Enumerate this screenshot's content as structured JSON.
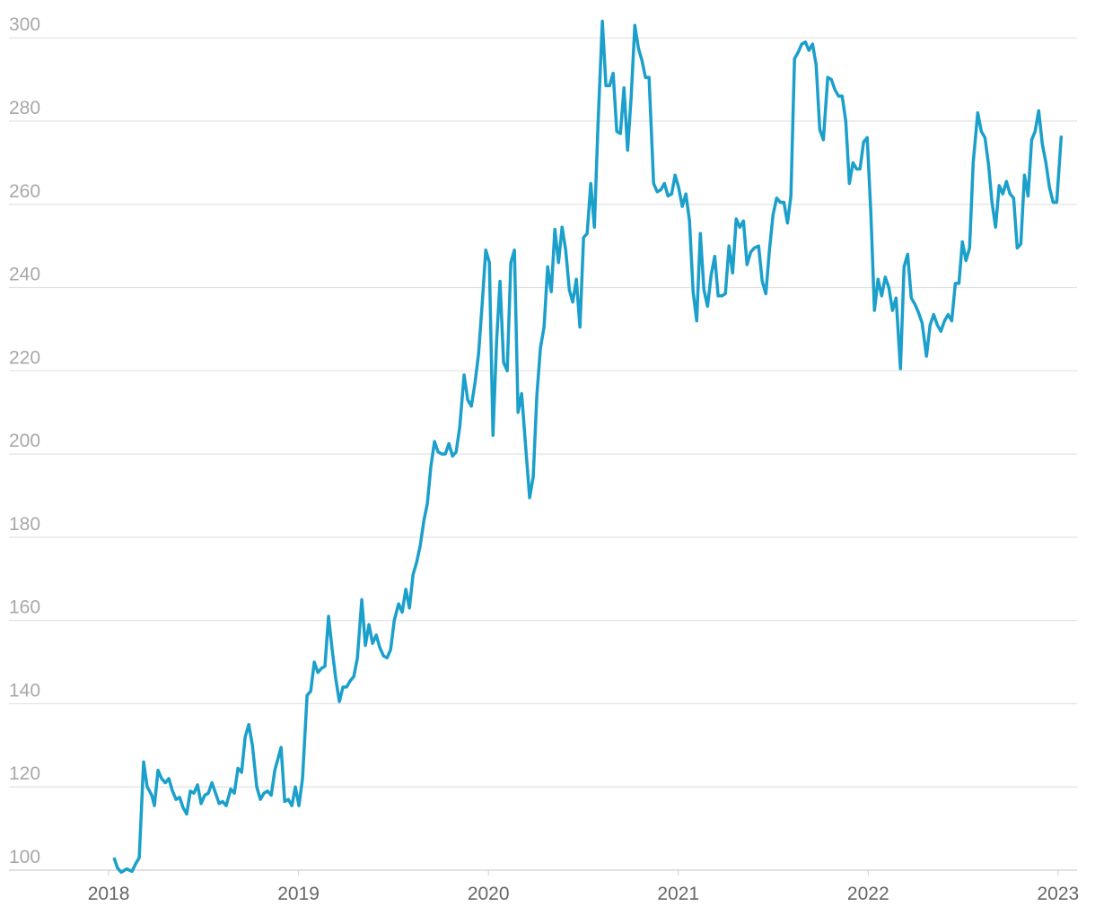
{
  "chart_data": {
    "type": "line",
    "x": [
      2018.028,
      2018.047,
      2018.066,
      2018.095,
      2018.123,
      2018.142,
      2018.161,
      2018.184,
      2018.203,
      2018.227,
      2018.241,
      2018.26,
      2018.279,
      2018.298,
      2018.317,
      2018.336,
      2018.355,
      2018.374,
      2018.392,
      2018.411,
      2018.43,
      2018.449,
      2018.468,
      2018.487,
      2018.506,
      2018.525,
      2018.544,
      2018.563,
      2018.582,
      2018.6,
      2018.619,
      2018.643,
      2018.662,
      2018.681,
      2018.7,
      2018.719,
      2018.738,
      2018.757,
      2018.78,
      2018.799,
      2018.818,
      2018.837,
      2018.856,
      2018.875,
      2018.908,
      2018.927,
      2018.946,
      2018.965,
      2018.983,
      2019.002,
      2019.021,
      2019.045,
      2019.064,
      2019.083,
      2019.102,
      2019.121,
      2019.139,
      2019.158,
      2019.177,
      2019.196,
      2019.215,
      2019.234,
      2019.253,
      2019.272,
      2019.291,
      2019.31,
      2019.333,
      2019.352,
      2019.371,
      2019.39,
      2019.409,
      2019.428,
      2019.447,
      2019.466,
      2019.485,
      2019.504,
      2019.527,
      2019.546,
      2019.565,
      2019.584,
      2019.603,
      2019.622,
      2019.641,
      2019.66,
      2019.678,
      2019.697,
      2019.716,
      2019.735,
      2019.754,
      2019.773,
      2019.792,
      2019.811,
      2019.83,
      2019.849,
      2019.872,
      2019.891,
      2019.91,
      2019.929,
      2019.948,
      2019.967,
      2019.986,
      2020.005,
      2020.024,
      2020.043,
      2020.061,
      2020.08,
      2020.099,
      2020.118,
      2020.137,
      2020.156,
      2020.175,
      2020.194,
      2020.217,
      2020.236,
      2020.255,
      2020.274,
      2020.293,
      2020.312,
      2020.331,
      2020.35,
      2020.369,
      2020.388,
      2020.407,
      2020.426,
      2020.444,
      2020.463,
      2020.482,
      2020.501,
      2020.52,
      2020.539,
      2020.558,
      2020.577,
      2020.6,
      2020.619,
      2020.638,
      2020.657,
      2020.676,
      2020.695,
      2020.714,
      2020.733,
      2020.752,
      2020.771,
      2020.79,
      2020.809,
      2020.827,
      2020.846,
      2020.87,
      2020.889,
      2020.908,
      2020.927,
      2020.946,
      2020.965,
      2020.983,
      2021.002,
      2021.021,
      2021.04,
      2021.059,
      2021.078,
      2021.097,
      2021.116,
      2021.135,
      2021.154,
      2021.173,
      2021.192,
      2021.21,
      2021.229,
      2021.248,
      2021.267,
      2021.286,
      2021.305,
      2021.324,
      2021.343,
      2021.362,
      2021.381,
      2021.4,
      2021.423,
      2021.442,
      2021.461,
      2021.48,
      2021.499,
      2021.518,
      2021.537,
      2021.556,
      2021.575,
      2021.593,
      2021.612,
      2021.631,
      2021.65,
      2021.669,
      2021.688,
      2021.707,
      2021.726,
      2021.745,
      2021.764,
      2021.787,
      2021.806,
      2021.825,
      2021.844,
      2021.863,
      2021.882,
      2021.901,
      2021.92,
      2021.939,
      2021.957,
      2021.976,
      2021.995,
      2022.014,
      2022.033,
      2022.052,
      2022.071,
      2022.09,
      2022.109,
      2022.128,
      2022.147,
      2022.17,
      2022.189,
      2022.208,
      2022.227,
      2022.246,
      2022.265,
      2022.284,
      2022.307,
      2022.326,
      2022.345,
      2022.364,
      2022.383,
      2022.402,
      2022.421,
      2022.44,
      2022.459,
      2022.478,
      2022.496,
      2022.515,
      2022.534,
      2022.553,
      2022.577,
      2022.596,
      2022.615,
      2022.634,
      2022.652,
      2022.671,
      2022.69,
      2022.709,
      2022.728,
      2022.747,
      2022.766,
      2022.785,
      2022.804,
      2022.823,
      2022.842,
      2022.861,
      2022.879,
      2022.898,
      2022.917,
      2022.936,
      2022.955,
      2022.974,
      2022.993,
      2023.017
    ],
    "series": [
      {
        "color": "#1b9fcb",
        "values": [
          103,
          100.5,
          99.5,
          100.3,
          99.7,
          101.5,
          103,
          126,
          120,
          118,
          115.5,
          124,
          122,
          121,
          122,
          119,
          117,
          117.5,
          115,
          113.5,
          119,
          118.5,
          120.5,
          116,
          118,
          118.5,
          121,
          118.5,
          116,
          116.5,
          115.5,
          119.5,
          118.5,
          124.5,
          123.5,
          132,
          135,
          130,
          120,
          117,
          118.5,
          119,
          118,
          124,
          129.5,
          116.5,
          117,
          115.5,
          120,
          115.5,
          122,
          142,
          143,
          150,
          147.5,
          148.5,
          149,
          161,
          153,
          146,
          140.5,
          144,
          144,
          145.5,
          146.5,
          151,
          165,
          154,
          159,
          154.5,
          156.5,
          153.5,
          151.5,
          151,
          153,
          160,
          164,
          162,
          167.5,
          163,
          171,
          174,
          178,
          184,
          188,
          197,
          203,
          200.5,
          200,
          200,
          202.5,
          199.5,
          200.5,
          206.5,
          219,
          213,
          211.5,
          217,
          224,
          236,
          249,
          246,
          204.5,
          227,
          241.5,
          222,
          220,
          246,
          249,
          210,
          214.5,
          203,
          189.5,
          194.5,
          214,
          225.5,
          230.5,
          245,
          239,
          254,
          246,
          254.5,
          249,
          239.5,
          236.5,
          242,
          230.5,
          252,
          253,
          265,
          254.5,
          279,
          304,
          288.5,
          288.5,
          291.5,
          277.5,
          277,
          288,
          273,
          286,
          303,
          297.5,
          294.5,
          290.5,
          290.5,
          265,
          263,
          263.5,
          265,
          262,
          262.5,
          267,
          264,
          259.5,
          262.5,
          256,
          239,
          232,
          253,
          239.5,
          235.5,
          243,
          247.5,
          238,
          238,
          238.5,
          250,
          243.5,
          256.5,
          254.5,
          256,
          245.5,
          248.5,
          249.5,
          250,
          241.5,
          238.5,
          249,
          257.5,
          261.5,
          260.5,
          260.5,
          255.5,
          262,
          295,
          296.5,
          298.5,
          299,
          297,
          298.5,
          293.5,
          278,
          275.5,
          290.5,
          290,
          287.5,
          286,
          286,
          280,
          265,
          270,
          268.5,
          268.5,
          275,
          276,
          258,
          234.5,
          242,
          238,
          242.5,
          240,
          234.5,
          237.5,
          220.5,
          245,
          248,
          237.5,
          236,
          234,
          231.5,
          223.5,
          231,
          233.5,
          231,
          229.5,
          232,
          233.5,
          232,
          241,
          241,
          251,
          246.5,
          249.5,
          270,
          282,
          277.5,
          276,
          269.5,
          260.5,
          254.5,
          264.5,
          262.5,
          265.5,
          262.5,
          261.5,
          249.5,
          250.5,
          267,
          262,
          275.5,
          277.5,
          282.5,
          274.5,
          270,
          264,
          260.5,
          260.5,
          276.5
        ]
      }
    ],
    "xlim": [
      2017.475,
      2023.1
    ],
    "xticks": [
      2018,
      2019,
      2020,
      2021,
      2022,
      2023
    ],
    "ylim": [
      100,
      305
    ],
    "yticks": [
      100,
      120,
      140,
      160,
      180,
      200,
      220,
      240,
      260,
      280,
      300
    ],
    "grid": true
  }
}
